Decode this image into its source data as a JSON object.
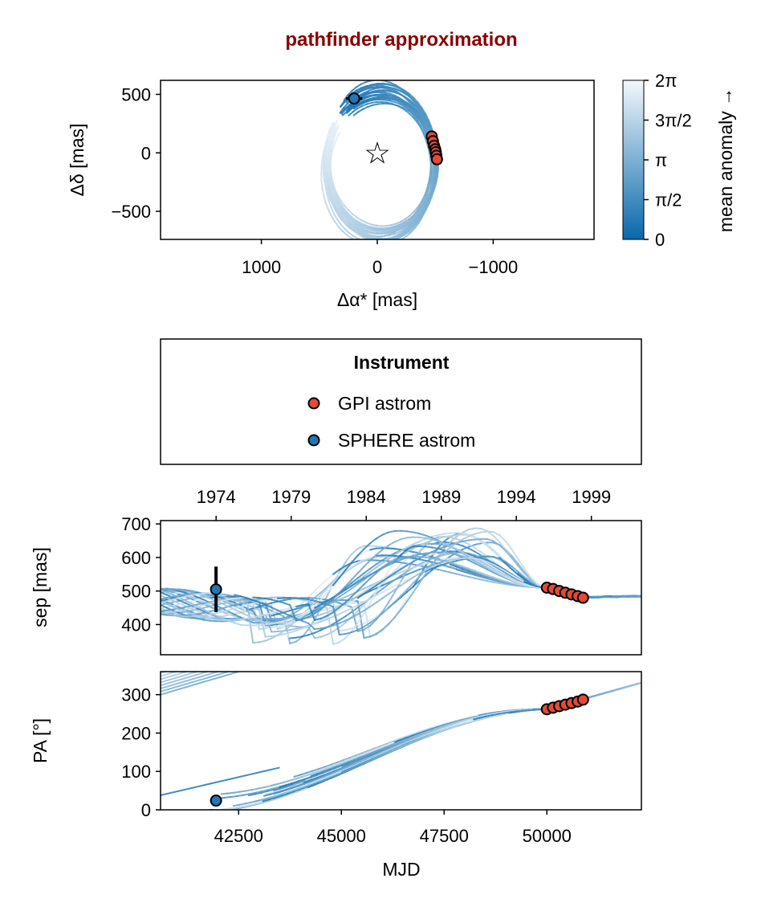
{
  "colors": {
    "title": "#8b0000",
    "orbit_dark": "#1f78b4",
    "orbit_light": "#e8f0f6",
    "gpi": "#e34a33",
    "sphere": "#1f77b4",
    "cbar_low": "#0868ac",
    "cbar_high": "#f4f8fb"
  },
  "title": "pathfinder approximation",
  "chart_data": [
    {
      "type": "line",
      "name": "sky-plot",
      "xlabel": "Δα* [mas]",
      "ylabel": "Δδ [mas]",
      "xlim": [
        1870,
        -1870
      ],
      "ylim": [
        -740,
        620
      ],
      "xticks": [
        {
          "v": 1000,
          "label": "1000"
        },
        {
          "v": 0,
          "label": "0"
        },
        {
          "v": -1000,
          "label": "−1000"
        }
      ],
      "yticks": [
        {
          "v": 500,
          "label": "500"
        },
        {
          "v": 0,
          "label": "0"
        },
        {
          "v": -500,
          "label": "−500"
        }
      ],
      "star": {
        "x": 0,
        "y": 0,
        "label": "☆"
      },
      "gpi_points": [
        {
          "x": -470,
          "y": 140
        },
        {
          "x": -480,
          "y": 100
        },
        {
          "x": -490,
          "y": 60
        },
        {
          "x": -500,
          "y": 30
        },
        {
          "x": -505,
          "y": 5
        },
        {
          "x": -510,
          "y": -25
        },
        {
          "x": -515,
          "y": -55
        }
      ],
      "sphere_points": [
        {
          "x": 200,
          "y": 465,
          "xerr": 70,
          "yerr": 50
        }
      ]
    },
    {
      "type": "colorbar",
      "name": "mean-anomaly-colorbar",
      "label": "mean anomaly →",
      "range": [
        0,
        6.2832
      ],
      "ticks": [
        {
          "v": 6.2832,
          "label": "2π"
        },
        {
          "v": 4.7124,
          "label": "3π/2"
        },
        {
          "v": 3.1416,
          "label": "π"
        },
        {
          "v": 1.5708,
          "label": "π/2"
        },
        {
          "v": 0,
          "label": "0"
        }
      ]
    },
    {
      "type": "line",
      "name": "separation-plot",
      "ylabel": "sep [mas]",
      "xlim": [
        40600,
        52300
      ],
      "ylim": [
        310,
        710
      ],
      "yticks": [
        {
          "v": 700,
          "label": "700"
        },
        {
          "v": 600,
          "label": "600"
        },
        {
          "v": 500,
          "label": "500"
        },
        {
          "v": 400,
          "label": "400"
        }
      ],
      "top_axis_ticks": [
        {
          "v": 41952,
          "label": "1974"
        },
        {
          "v": 43779,
          "label": "1979"
        },
        {
          "v": 45605,
          "label": "1984"
        },
        {
          "v": 47431,
          "label": "1989"
        },
        {
          "v": 49257,
          "label": "1994"
        },
        {
          "v": 51083,
          "label": "1999"
        }
      ],
      "gpi_points": [
        {
          "x": 50000,
          "y": 510
        },
        {
          "x": 50150,
          "y": 506
        },
        {
          "x": 50300,
          "y": 500
        },
        {
          "x": 50450,
          "y": 495
        },
        {
          "x": 50600,
          "y": 490
        },
        {
          "x": 50750,
          "y": 485
        },
        {
          "x": 50880,
          "y": 480
        }
      ],
      "sphere_points": [
        {
          "x": 41950,
          "y": 505,
          "yerr": 68
        }
      ]
    },
    {
      "type": "line",
      "name": "position-angle-plot",
      "xlabel": "MJD",
      "ylabel": "PA [°]",
      "xlim": [
        40600,
        52300
      ],
      "ylim": [
        0,
        360
      ],
      "xticks": [
        {
          "v": 42500,
          "label": "42500"
        },
        {
          "v": 45000,
          "label": "45000"
        },
        {
          "v": 47500,
          "label": "47500"
        },
        {
          "v": 50000,
          "label": "50000"
        }
      ],
      "yticks": [
        {
          "v": 300,
          "label": "300"
        },
        {
          "v": 200,
          "label": "200"
        },
        {
          "v": 100,
          "label": "100"
        },
        {
          "v": 0,
          "label": "0"
        }
      ],
      "gpi_points": [
        {
          "x": 50000,
          "y": 262
        },
        {
          "x": 50150,
          "y": 266
        },
        {
          "x": 50300,
          "y": 270
        },
        {
          "x": 50450,
          "y": 274
        },
        {
          "x": 50600,
          "y": 278
        },
        {
          "x": 50750,
          "y": 282
        },
        {
          "x": 50880,
          "y": 287
        }
      ],
      "sphere_points": [
        {
          "x": 41950,
          "y": 24,
          "yerr": 8
        }
      ]
    }
  ],
  "legend": {
    "title": "Instrument",
    "items": [
      {
        "label": "GPI astrom",
        "color": "#e34a33"
      },
      {
        "label": "SPHERE astrom",
        "color": "#1f77b4"
      }
    ]
  }
}
